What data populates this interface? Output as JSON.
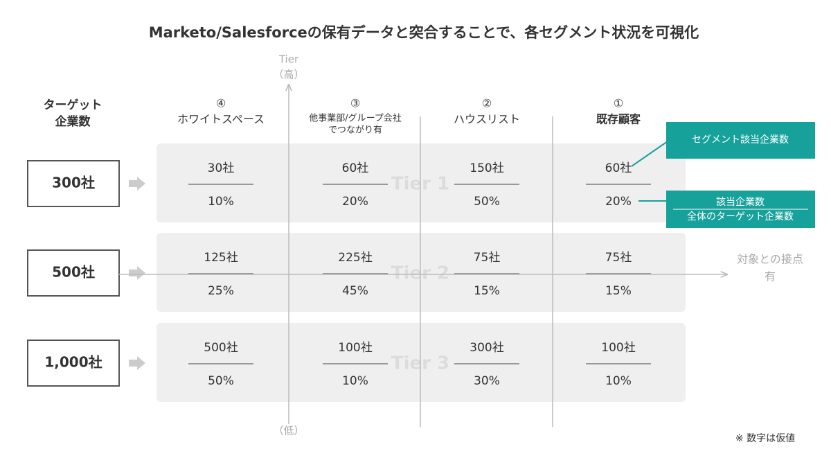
{
  "title": "Marketo/Salesforceの保有データと突合することで、各セグメント状況を可視化",
  "axis": {
    "y_label": "Tier",
    "y_high": "（高）",
    "y_low": "（低）",
    "x_label": [
      "対象との接点",
      "有"
    ]
  },
  "target_header": [
    "ターゲット",
    "企業数"
  ],
  "columns": [
    {
      "number": "④",
      "label": [
        "ホワイトスペース"
      ]
    },
    {
      "number": "③",
      "label": [
        "他事業部/グループ会社",
        "でつながり有"
      ]
    },
    {
      "number": "②",
      "label": [
        "ハウスリスト"
      ]
    },
    {
      "number": "①",
      "label": [
        "既存顧客"
      ]
    }
  ],
  "rows": [
    {
      "tier": "Tier 1",
      "target": "300社",
      "cells": [
        {
          "count": "30社",
          "share": "10%"
        },
        {
          "count": "60社",
          "share": "20%"
        },
        {
          "count": "150社",
          "share": "50%"
        },
        {
          "count": "60社",
          "share": "20%"
        }
      ]
    },
    {
      "tier": "Tier 2",
      "target": "500社",
      "cells": [
        {
          "count": "125社",
          "share": "25%"
        },
        {
          "count": "225社",
          "share": "45%"
        },
        {
          "count": "75社",
          "share": "15%"
        },
        {
          "count": "75社",
          "share": "15%"
        }
      ]
    },
    {
      "tier": "Tier 3",
      "target": "1,000社",
      "cells": [
        {
          "count": "500社",
          "share": "50%"
        },
        {
          "count": "100社",
          "share": "10%"
        },
        {
          "count": "300社",
          "share": "30%"
        },
        {
          "count": "100社",
          "share": "10%"
        }
      ]
    }
  ],
  "callouts": {
    "segment": "セグメント該当企業数",
    "ratio_numerator": "該当企業数",
    "ratio_denominator": "全体のターゲット企業数"
  },
  "note": "※ 数字は仮値"
}
